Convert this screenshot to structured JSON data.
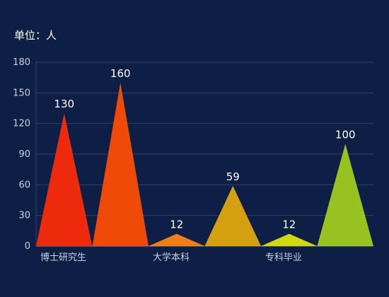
{
  "unit_label": "单位：人",
  "chart_data": {
    "type": "bar",
    "mark_shape": "triangle",
    "categories": [
      "博士研究生",
      "",
      "大学本科",
      "",
      "专科毕业",
      ""
    ],
    "values": [
      130,
      160,
      12,
      59,
      12,
      100
    ],
    "data_labels": [
      "130",
      "160",
      "12",
      "59",
      "12",
      "100"
    ],
    "colors": [
      "#ee2a0c",
      "#f04a08",
      "#f07e14",
      "#d4a010",
      "#d2d80e",
      "#98c21f"
    ],
    "ylim": [
      0,
      180
    ],
    "yticks": [
      0,
      30,
      60,
      90,
      120,
      150,
      180
    ],
    "grid": true,
    "title": "",
    "xlabel": "",
    "ylabel": ""
  }
}
